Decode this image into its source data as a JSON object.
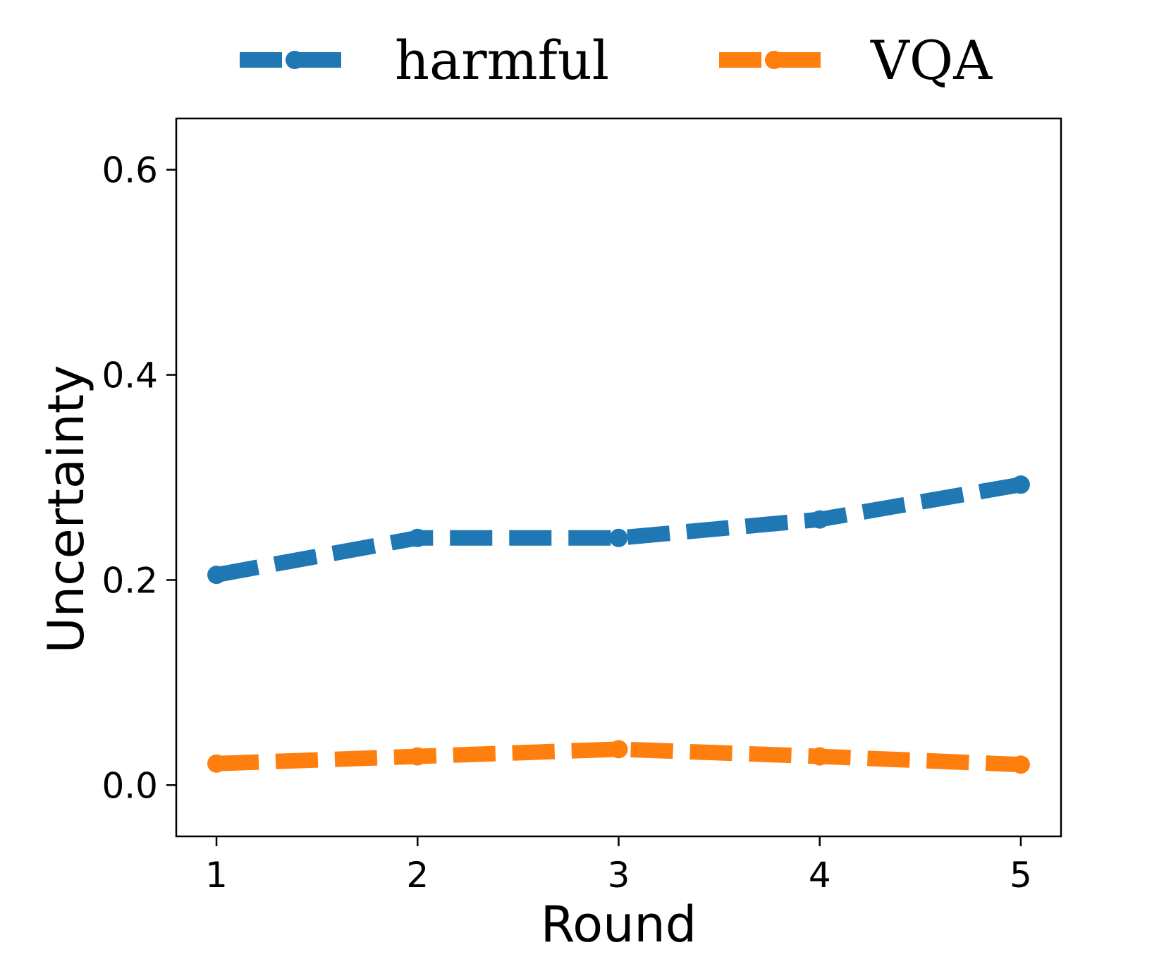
{
  "chart_data": {
    "type": "line",
    "x": [
      1,
      2,
      3,
      4,
      5
    ],
    "series": [
      {
        "name": "harmful",
        "values": [
          0.205,
          0.241,
          0.241,
          0.259,
          0.293
        ],
        "color": "#1f77b4"
      },
      {
        "name": "VQA",
        "values": [
          0.021,
          0.028,
          0.035,
          0.028,
          0.02
        ],
        "color": "#ff7f0e"
      }
    ],
    "xlabel": "Round",
    "ylabel": "Uncertainty",
    "xticks": [
      "1",
      "2",
      "3",
      "4",
      "5"
    ],
    "yticks": [
      "0.0",
      "0.2",
      "0.4",
      "0.6"
    ],
    "xlim": [
      0.8,
      5.2
    ],
    "ylim": [
      -0.05,
      0.65
    ],
    "line_style": "dashed",
    "marker": "circle",
    "legend_position": "top",
    "grid": false
  }
}
